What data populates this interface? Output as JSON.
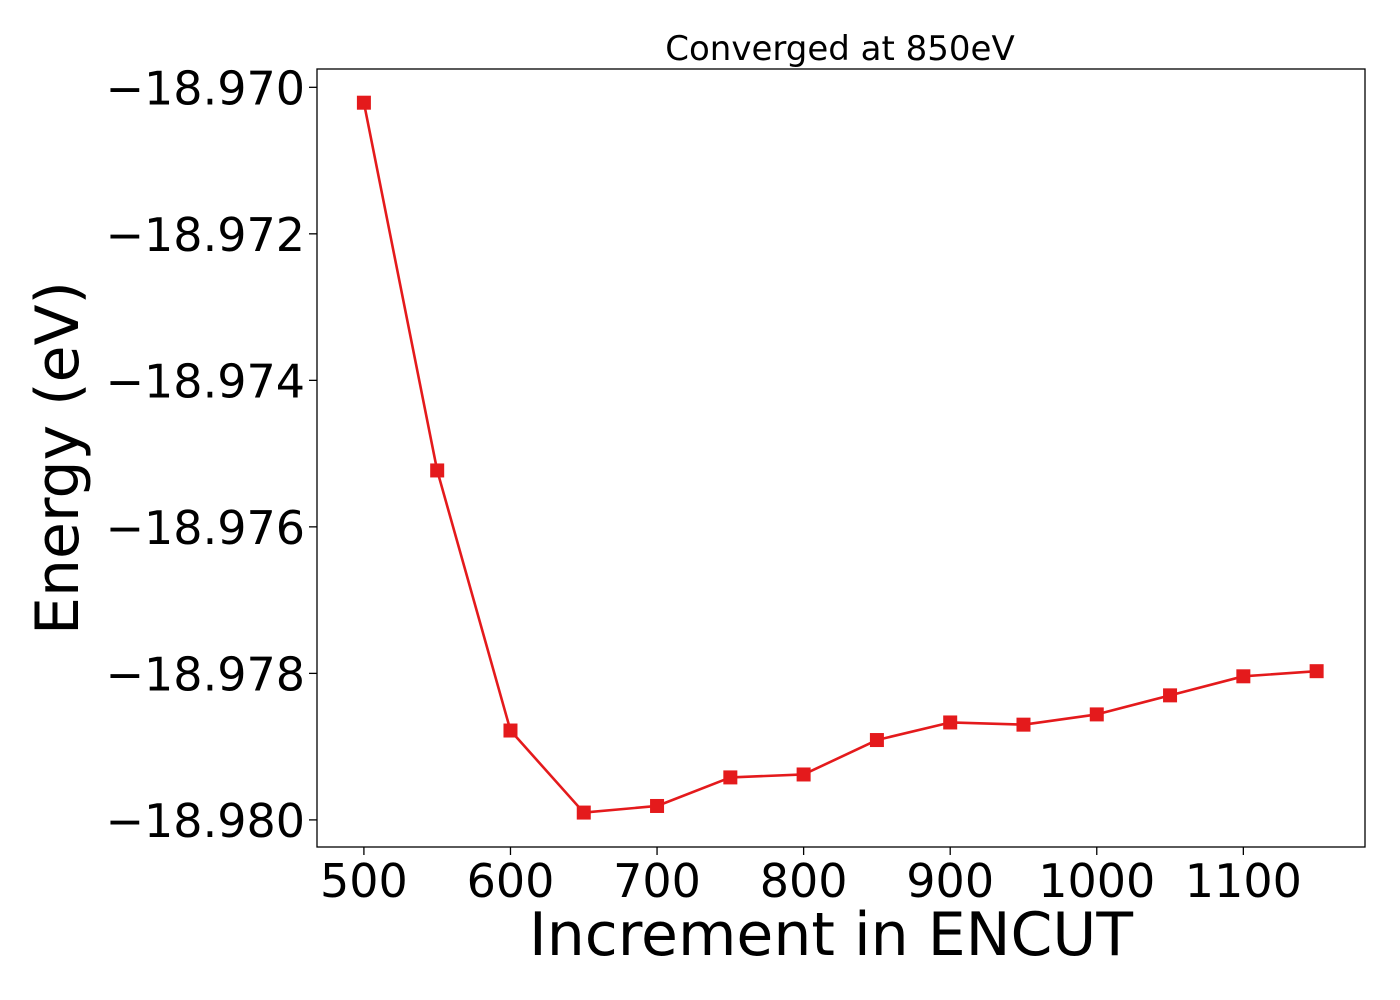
{
  "chart_data": {
    "type": "line",
    "title": "Converged at 850eV",
    "xlabel": "Increment in ENCUT",
    "ylabel": "Energy (eV)",
    "x": [
      500,
      550,
      600,
      650,
      700,
      750,
      800,
      850,
      900,
      950,
      1000,
      1050,
      1100,
      1150
    ],
    "series": [
      {
        "values": [
          -18.97021,
          -18.97523,
          -18.97878,
          -18.9799,
          -18.97981,
          -18.97942,
          -18.97938,
          -18.97891,
          -18.97867,
          -18.9787,
          -18.97856,
          -18.9783,
          -18.97804,
          -18.97797
        ],
        "color": "#e41a1c",
        "marker": "square"
      }
    ],
    "xlim": [
      468,
      1183
    ],
    "ylim": [
      -18.98037,
      -18.96975
    ],
    "xticks": [
      500,
      600,
      700,
      800,
      900,
      1000,
      1100
    ],
    "xtick_labels": [
      "500",
      "600",
      "700",
      "800",
      "900",
      "1000",
      "1100"
    ],
    "yticks": [
      -18.97,
      -18.972,
      -18.974,
      -18.976,
      -18.978,
      -18.98
    ],
    "ytick_labels": [
      "−18.970",
      "−18.972",
      "−18.974",
      "−18.976",
      "−18.978",
      "−18.980"
    ],
    "grid": false,
    "legend": "none"
  }
}
